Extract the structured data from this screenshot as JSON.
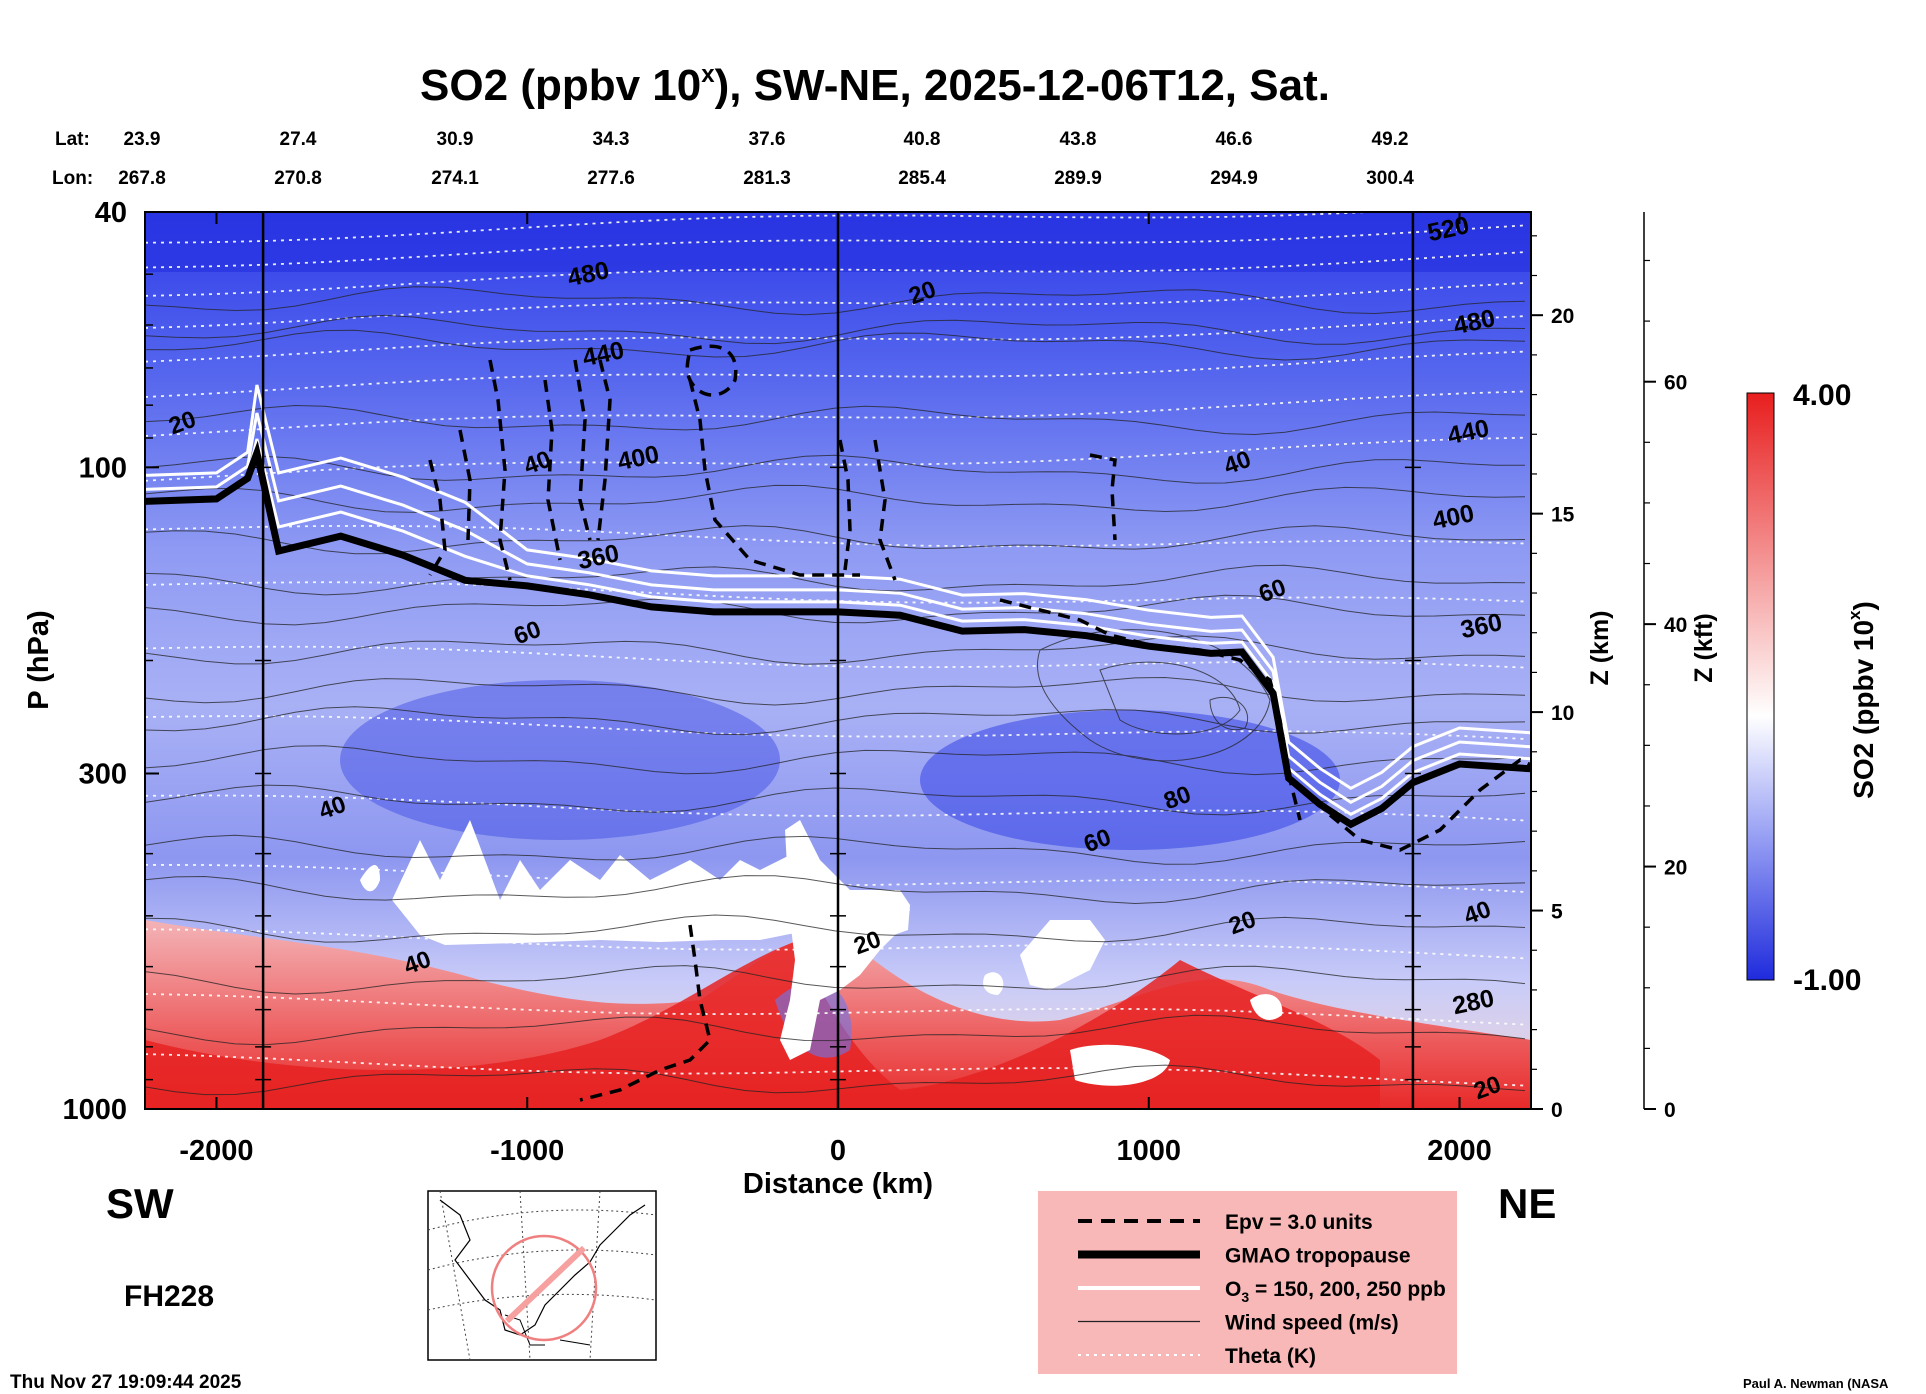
{
  "chart_data": {
    "type": "heatmap",
    "title": "SO2 (ppbv 10",
    "title_superscript": "x",
    "title_suffix": "), SW-NE, 2025-12-06T12, Sat.",
    "lat_label": "Lat:",
    "lon_label": "Lon:",
    "lat_values": [
      "23.9",
      "27.4",
      "30.9",
      "34.3",
      "37.6",
      "40.8",
      "43.8",
      "46.6",
      "49.2"
    ],
    "lon_values": [
      "267.8",
      "270.8",
      "274.1",
      "277.6",
      "281.3",
      "285.4",
      "289.9",
      "294.9",
      "300.4"
    ],
    "xlabel": "Distance (km)",
    "x_ticks": [
      "-2000",
      "-1000",
      "0",
      "1000",
      "2000"
    ],
    "x_range": [
      -2230,
      2230
    ],
    "ylabel": "P (hPa)",
    "y_ticks": [
      "40",
      "100",
      "300",
      "1000"
    ],
    "y_range": [
      1000,
      40
    ],
    "z_km_label": "Z (km)",
    "z_km_ticks": [
      "0",
      "5",
      "10",
      "15",
      "20"
    ],
    "z_kft_label": "Z (kft)",
    "z_kft_ticks": [
      "0",
      "20",
      "40",
      "60"
    ],
    "left_region": "SW",
    "right_region": "NE",
    "forecast_hour": "FH228",
    "colorbar": {
      "label": "SO2 (ppbv 10",
      "label_superscript": "x",
      "label_suffix": ")",
      "max": "4.00",
      "min": "-1.00"
    },
    "colors": {
      "negative": "#2832e8",
      "neutral": "#ffffff",
      "positive": "#e81e1e",
      "legend_bg": "#f8b8b8"
    },
    "section_markers_km": [
      -1850,
      0,
      1850
    ],
    "tropopause_km_hpa": [
      [
        -2230,
        113
      ],
      [
        -2000,
        112
      ],
      [
        -1900,
        104
      ],
      [
        -1870,
        95
      ],
      [
        -1800,
        135
      ],
      [
        -1600,
        128
      ],
      [
        -1400,
        137
      ],
      [
        -1200,
        150
      ],
      [
        -1000,
        153
      ],
      [
        -800,
        158
      ],
      [
        -600,
        165
      ],
      [
        -400,
        168
      ],
      [
        -200,
        168
      ],
      [
        0,
        168
      ],
      [
        200,
        170
      ],
      [
        400,
        180
      ],
      [
        600,
        179
      ],
      [
        800,
        183
      ],
      [
        1000,
        190
      ],
      [
        1200,
        195
      ],
      [
        1300,
        194
      ],
      [
        1400,
        225
      ],
      [
        1450,
        305
      ],
      [
        1550,
        335
      ],
      [
        1650,
        360
      ],
      [
        1750,
        340
      ],
      [
        1850,
        310
      ],
      [
        2000,
        290
      ],
      [
        2230,
        295
      ]
    ],
    "wind_speed_labels": [
      "20",
      "20",
      "40",
      "40",
      "60",
      "60",
      "60",
      "80",
      "40",
      "40",
      "20",
      "20",
      "40",
      "20"
    ],
    "theta_labels": [
      "520",
      "480",
      "480",
      "440",
      "440",
      "400",
      "400",
      "360",
      "360",
      "280"
    ],
    "legend": [
      {
        "style": "dashed",
        "label": "Epv = 3.0 units"
      },
      {
        "style": "thick",
        "label": "GMAO tropopause"
      },
      {
        "style": "white",
        "label": "O",
        "sub": "3",
        "suffix": " = 150, 200, 250 ppb"
      },
      {
        "style": "thin",
        "label": "Wind speed (m/s)"
      },
      {
        "style": "dotted",
        "label": "Theta (K)"
      }
    ],
    "timestamp": "Thu Nov 27 19:09:44 2025",
    "credit": "Paul A. Newman (NASA"
  }
}
